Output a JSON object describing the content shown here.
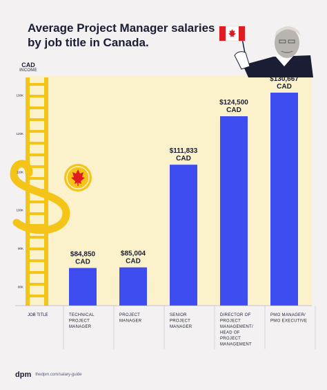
{
  "chart_data": {
    "type": "bar",
    "title": "Average Project Manager salaries by job title in Canada.",
    "ylabel": "CAD",
    "ylabel_sub": "INCOME",
    "xlabel": "JOB TITLE",
    "ylim": [
      75000,
      135000
    ],
    "y_ticks": [
      80000,
      90000,
      100000,
      110000,
      120000,
      130000
    ],
    "y_tick_labels": [
      "80K",
      "90K",
      "100K",
      "110K",
      "120K",
      "130K"
    ],
    "grid": false,
    "categories": [
      [
        "TECHNICAL",
        "PROJECT",
        "MANAGER"
      ],
      [
        "PROJECT",
        "MANAGER"
      ],
      [
        "SENIOR",
        "PROJECT",
        "MANAGER"
      ],
      [
        "DIRECTOR OF",
        "PROJECT",
        "MANAGEMENT/",
        "HEAD OF",
        "PROJECT",
        "MANAGEMENT"
      ],
      [
        "PMO MANAGER/",
        "PMO EXECUTIVE"
      ]
    ],
    "values": [
      84850,
      85004,
      111833,
      124500,
      130667
    ],
    "value_labels": [
      "$84,850",
      "$85,004",
      "$111,833",
      "$124,500",
      "$130,667"
    ],
    "value_unit": "CAD",
    "bar_color": "#3d4df0",
    "plot_bg": "#fbf1cb"
  },
  "footer": {
    "logo": "dpm",
    "url": "thedpm.com/salary-guide"
  }
}
